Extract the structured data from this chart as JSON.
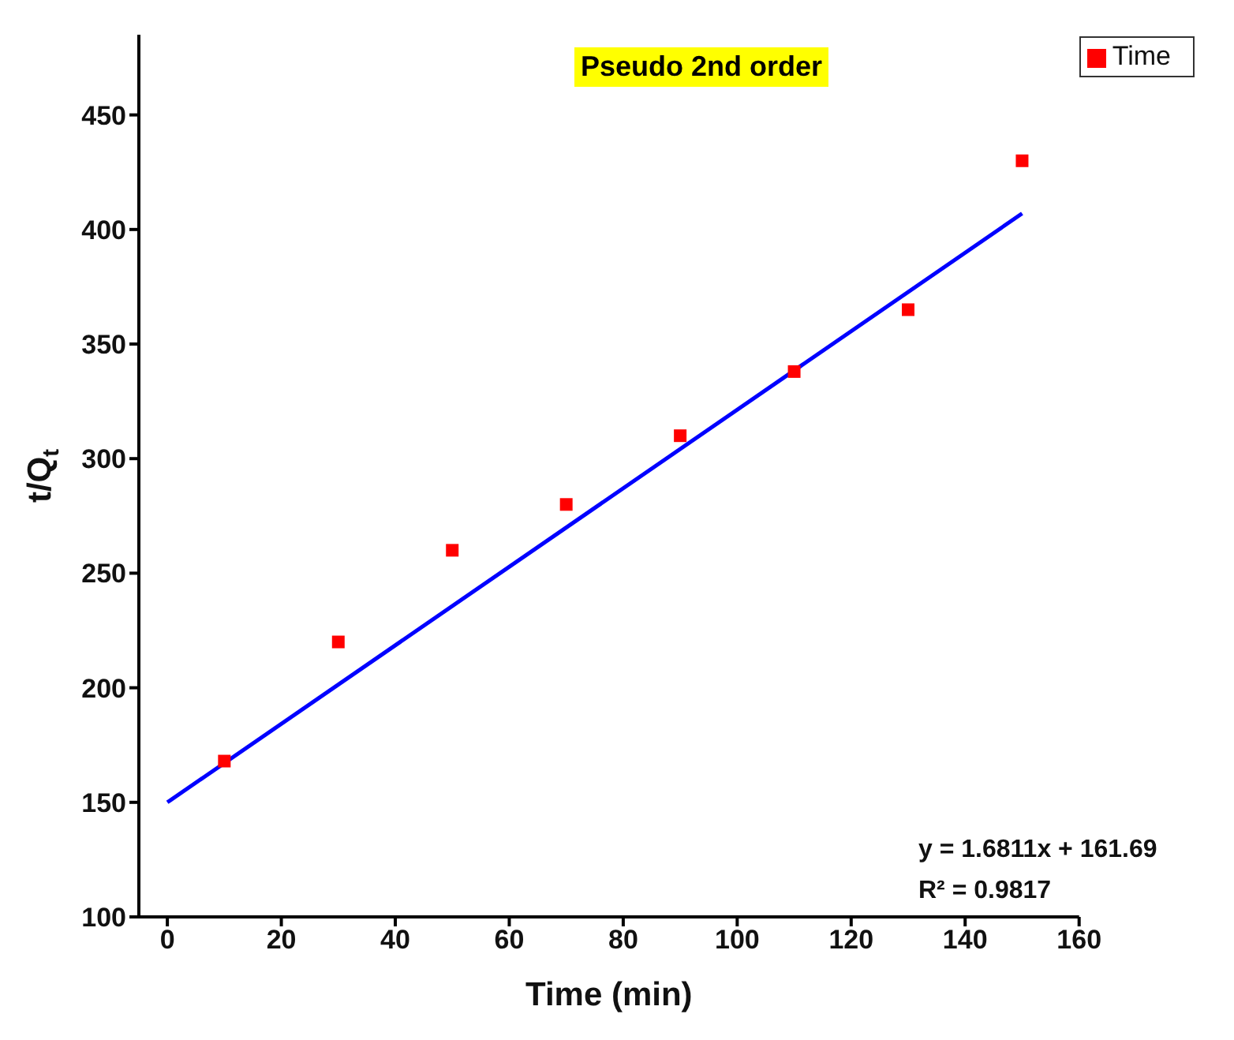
{
  "chart_data": {
    "type": "scatter",
    "title": "Pseudo 2nd order",
    "xlabel": "Time (min)",
    "ylabel": "t/Q$_{t}$",
    "annotations": [
      "y = 1.6811x + 161.69",
      "R² = 0.9817"
    ],
    "xlim": [
      -5,
      160
    ],
    "xticks": [
      0,
      20,
      40,
      60,
      80,
      100,
      120,
      140,
      160
    ],
    "ylim": [
      100,
      485
    ],
    "yticks": [
      100,
      150,
      200,
      250,
      300,
      350,
      400,
      450
    ],
    "grid": false,
    "legend": "top right",
    "series": [
      {
        "name": "Time",
        "marker": "square",
        "color": "#ff0000",
        "x": [
          10,
          30,
          50,
          70,
          90,
          110,
          130,
          150
        ],
        "values": [
          168,
          220,
          260,
          280,
          310,
          338,
          365,
          430
        ]
      },
      {
        "type": "line",
        "color": "#0000ff",
        "line_style": "solid",
        "x": [
          0,
          150
        ],
        "values": [
          150,
          407
        ]
      }
    ]
  }
}
